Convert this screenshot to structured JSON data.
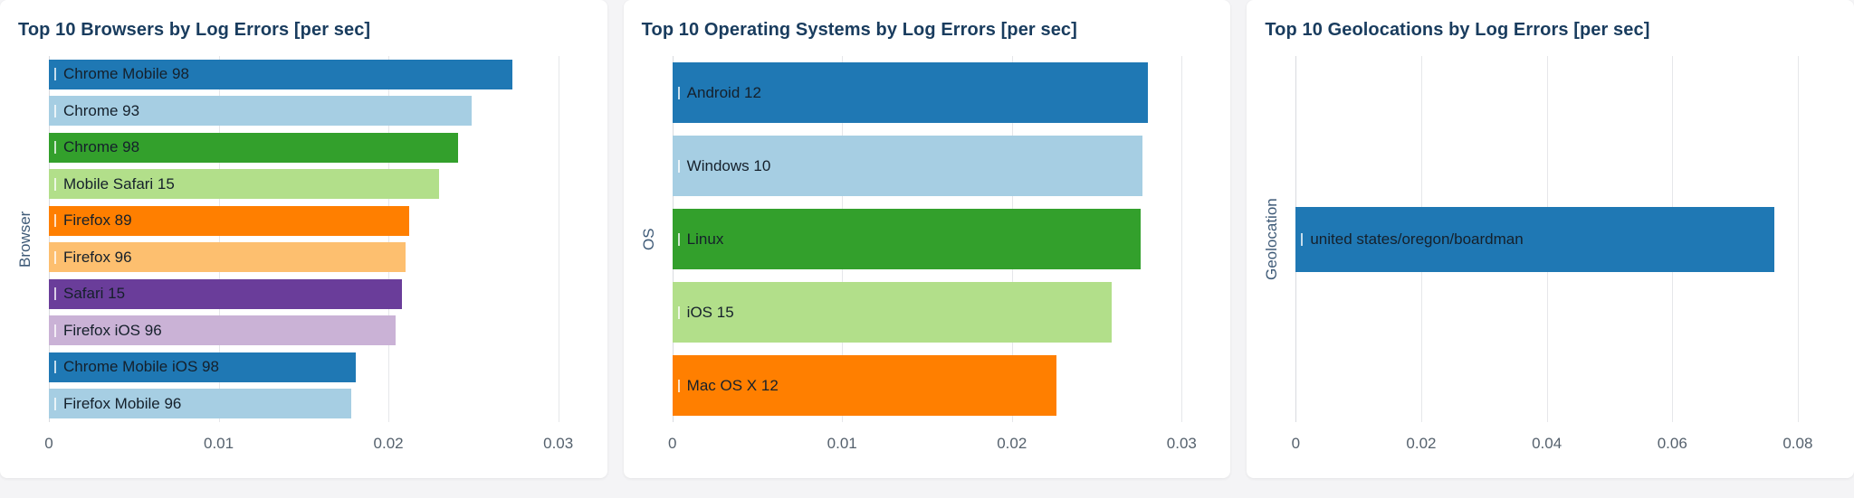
{
  "theme": {
    "page_background": "#f4f4f6",
    "panel_background": "#ffffff",
    "title_color": "#193c5e",
    "y_axis_label_color": "#3e5a77",
    "tick_label_color": "#55616d",
    "gridline_color": "#e6e7ea",
    "axis_line_color": "#d9dbdf",
    "bar_label_color": "#15202b"
  },
  "chart_data": [
    {
      "type": "bar",
      "orientation": "horizontal",
      "title": "Top 10 Browsers by Log Errors [per sec]",
      "xlabel": "",
      "ylabel": "Browser",
      "grid": true,
      "legend": false,
      "xlim": [
        0,
        0.0316
      ],
      "xticks": [
        {
          "value": 0,
          "label": "0"
        },
        {
          "value": 0.01,
          "label": "0.01"
        },
        {
          "value": 0.02,
          "label": "0.02"
        },
        {
          "value": 0.03,
          "label": "0.03"
        }
      ],
      "bars": [
        {
          "category": "Chrome Mobile 98",
          "value": 0.0273,
          "color": "#1f78b4"
        },
        {
          "category": "Chrome 93",
          "value": 0.0249,
          "color": "#a6cee3"
        },
        {
          "category": "Chrome 98",
          "value": 0.0241,
          "color": "#33a02c"
        },
        {
          "category": "Mobile Safari 15",
          "value": 0.023,
          "color": "#b2df8a"
        },
        {
          "category": "Firefox 89",
          "value": 0.0212,
          "color": "#ff7f00"
        },
        {
          "category": "Firefox 96",
          "value": 0.021,
          "color": "#fdbf6f"
        },
        {
          "category": "Safari 15",
          "value": 0.0208,
          "color": "#6a3d9a"
        },
        {
          "category": "Firefox iOS 96",
          "value": 0.0204,
          "color": "#cab2d6"
        },
        {
          "category": "Chrome Mobile iOS 98",
          "value": 0.0181,
          "color": "#1f78b4"
        },
        {
          "category": "Firefox Mobile 96",
          "value": 0.0178,
          "color": "#a6cee3"
        }
      ]
    },
    {
      "type": "bar",
      "orientation": "horizontal",
      "title": "Top 10 Operating Systems by Log Errors [per sec]",
      "xlabel": "",
      "ylabel": "OS",
      "grid": true,
      "legend": false,
      "xlim": [
        0,
        0.0316
      ],
      "xticks": [
        {
          "value": 0,
          "label": "0"
        },
        {
          "value": 0.01,
          "label": "0.01"
        },
        {
          "value": 0.02,
          "label": "0.02"
        },
        {
          "value": 0.03,
          "label": "0.03"
        }
      ],
      "bars": [
        {
          "category": "Android 12",
          "value": 0.028,
          "color": "#1f78b4"
        },
        {
          "category": "Windows 10",
          "value": 0.0277,
          "color": "#a6cee3"
        },
        {
          "category": "Linux",
          "value": 0.0276,
          "color": "#33a02c"
        },
        {
          "category": "iOS 15",
          "value": 0.0259,
          "color": "#b2df8a"
        },
        {
          "category": "Mac OS X 12",
          "value": 0.0226,
          "color": "#ff7f00"
        }
      ]
    },
    {
      "type": "bar",
      "orientation": "horizontal",
      "title": "Top 10 Geolocations by Log Errors [per sec]",
      "xlabel": "",
      "ylabel": "Geolocation",
      "grid": true,
      "legend": false,
      "xlim": [
        0,
        0.0855
      ],
      "xticks": [
        {
          "value": 0,
          "label": "0"
        },
        {
          "value": 0.02,
          "label": "0.02"
        },
        {
          "value": 0.04,
          "label": "0.04"
        },
        {
          "value": 0.06,
          "label": "0.06"
        },
        {
          "value": 0.08,
          "label": "0.08"
        }
      ],
      "bars": [
        {
          "category": "united states/oregon/boardman",
          "value": 0.0762,
          "color": "#1f78b4"
        }
      ]
    }
  ]
}
